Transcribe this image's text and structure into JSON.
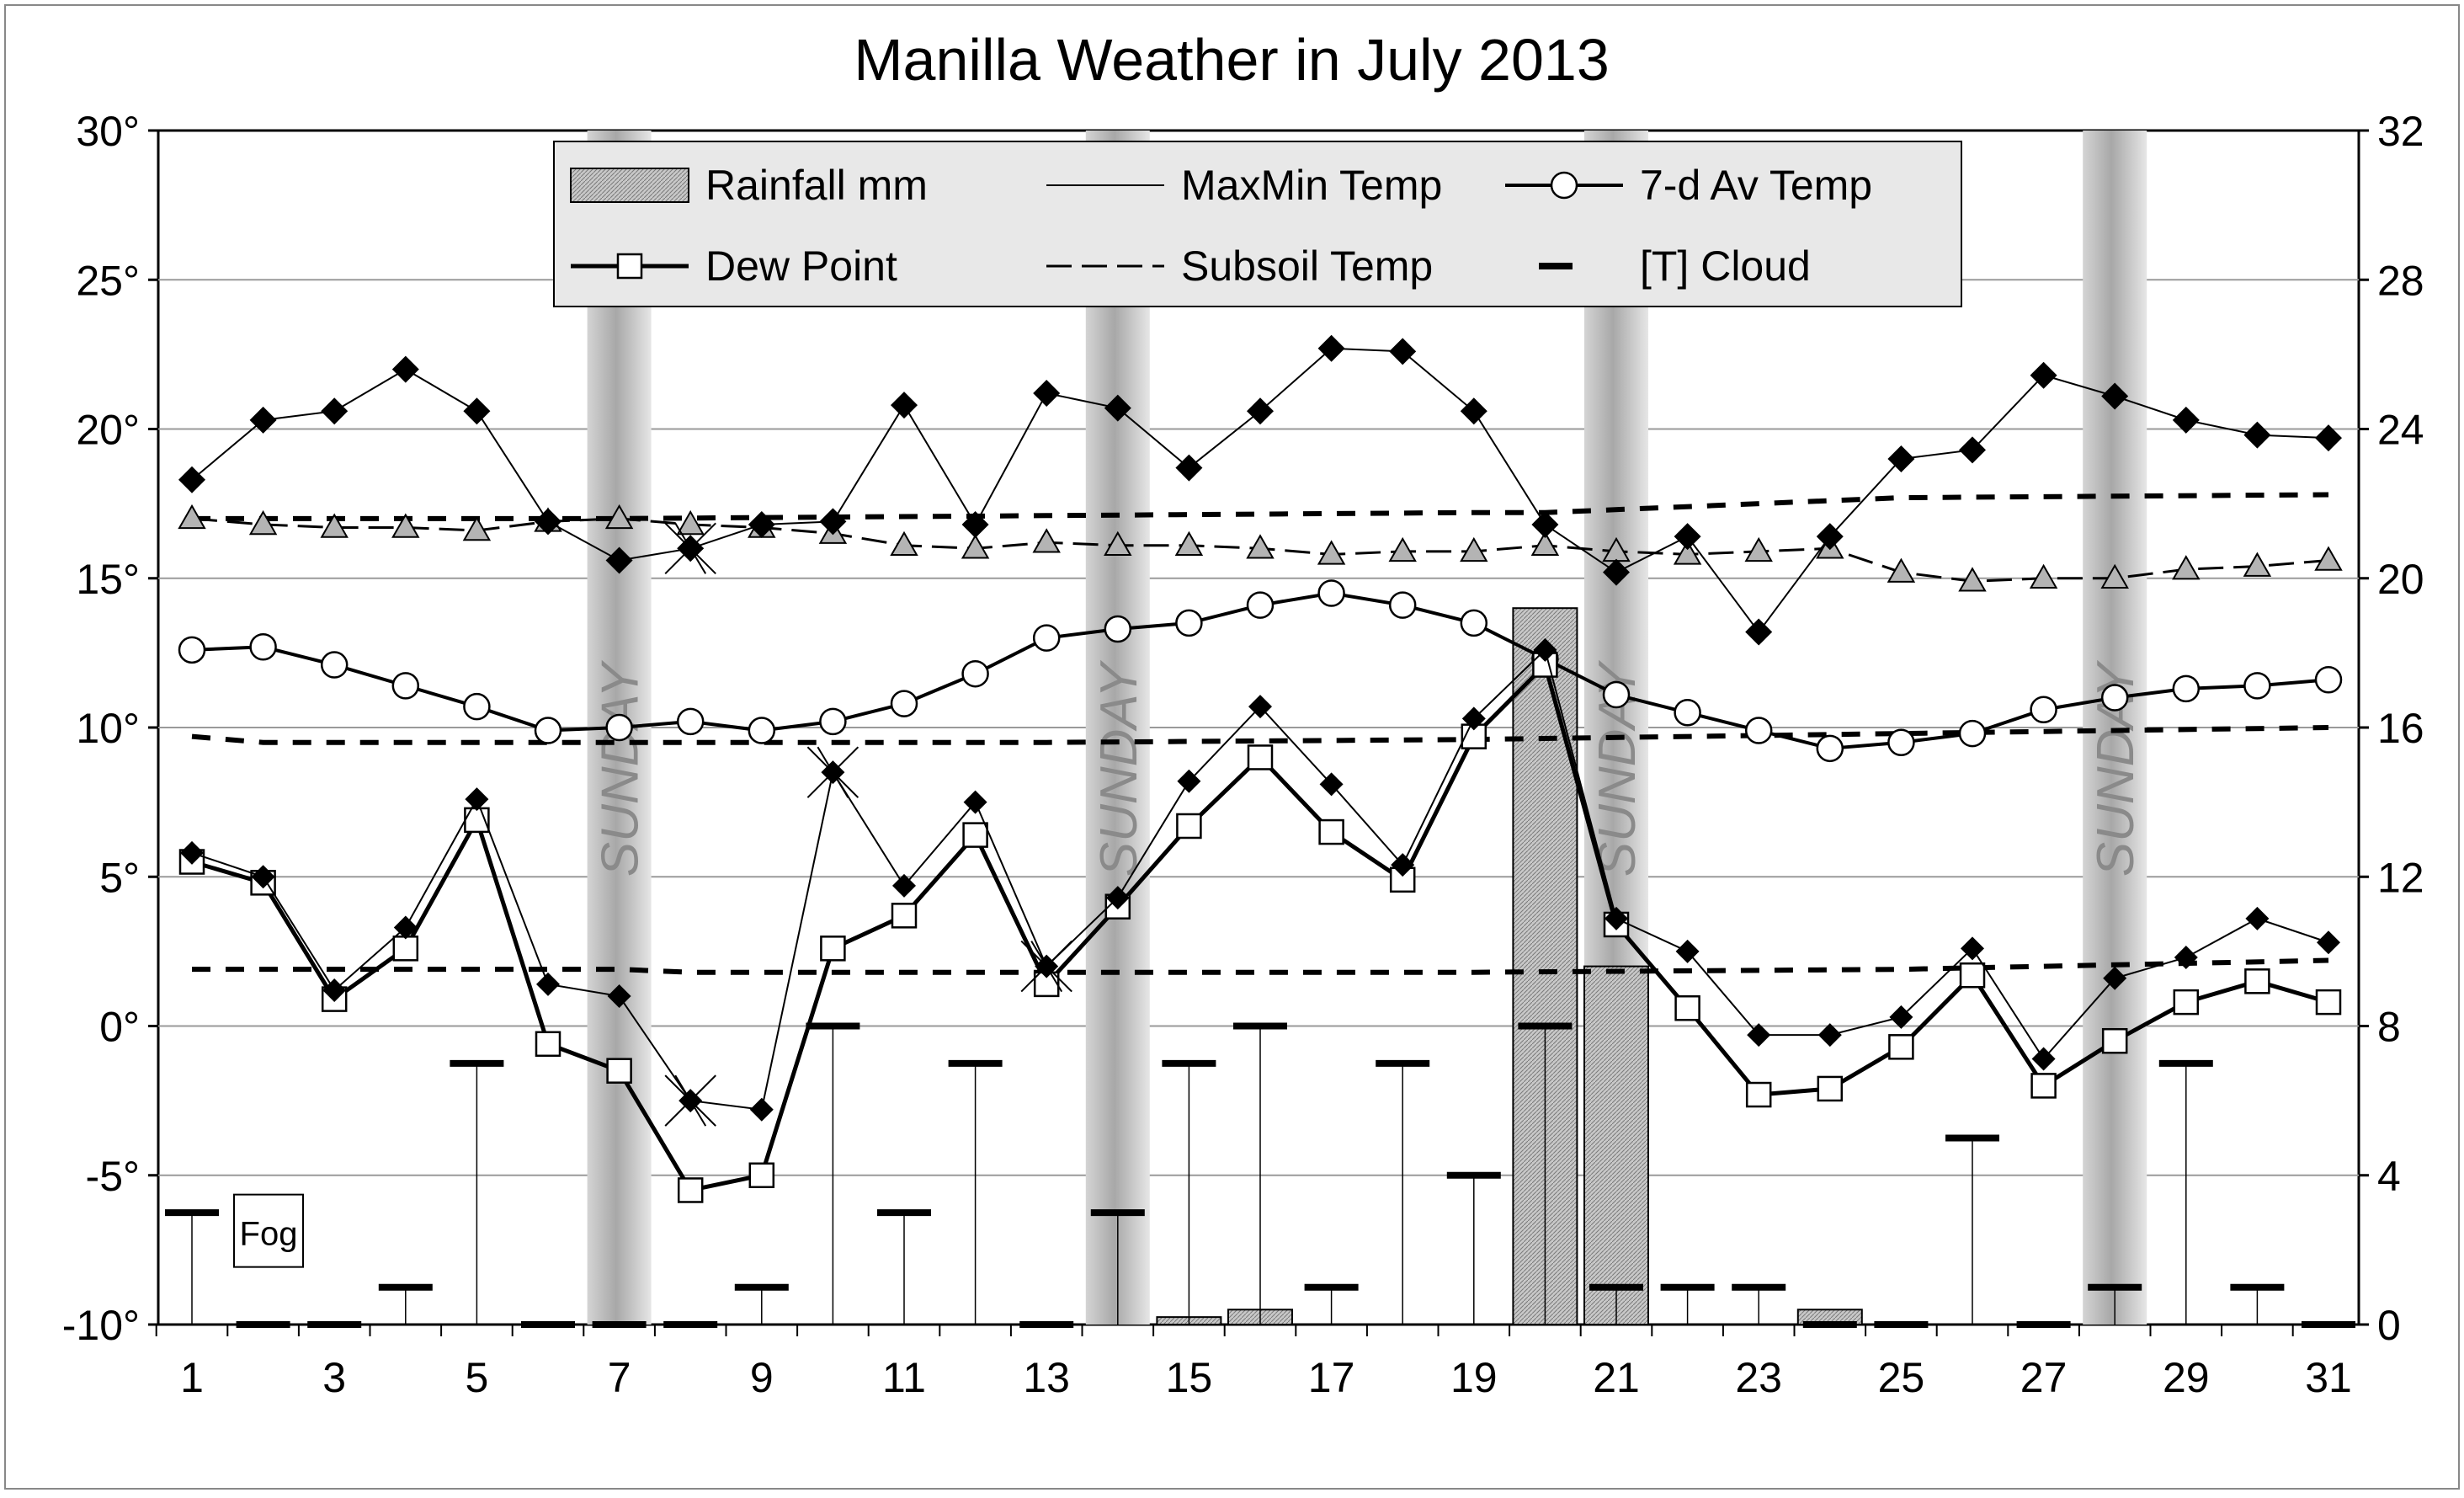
{
  "chart_data": {
    "type": "line",
    "title": "Manilla Weather in July 2013",
    "x": [
      1,
      2,
      3,
      4,
      5,
      6,
      7,
      8,
      9,
      10,
      11,
      12,
      13,
      14,
      15,
      16,
      17,
      18,
      19,
      20,
      21,
      22,
      23,
      24,
      25,
      26,
      27,
      28,
      29,
      30,
      31
    ],
    "x_tick_labels": [
      "1",
      "3",
      "5",
      "7",
      "9",
      "11",
      "13",
      "15",
      "17",
      "19",
      "21",
      "23",
      "25",
      "27",
      "29",
      "31"
    ],
    "y_left_tick_labels": [
      "30°",
      "25°",
      "20°",
      "15°",
      "10°",
      "5°",
      "0°",
      "-5°",
      "-10°"
    ],
    "y_right_tick_labels": [
      "32",
      "28",
      "24",
      "20",
      "16",
      "12",
      "8",
      "4",
      "0"
    ],
    "ylim_left": [
      -10,
      30
    ],
    "ylim_right": [
      0,
      32
    ],
    "legend_position": "top-center",
    "sunday_label": "SUNDAY",
    "sundays": [
      7,
      14,
      21,
      28
    ],
    "fog_label": "Fog",
    "fog_day": 1,
    "series": [
      {
        "name": "Rainfall mm",
        "axis": "right",
        "style": "bar",
        "values": [
          0,
          0,
          0,
          0,
          0,
          0,
          0,
          0,
          0,
          0,
          0,
          0,
          0,
          0,
          0.2,
          0.4,
          0,
          0,
          0,
          19.2,
          9.6,
          0,
          0,
          0.4,
          0,
          0,
          0,
          0,
          0,
          0,
          0
        ]
      },
      {
        "name": "MaxMin Temp",
        "axis": "left",
        "style": "diamond",
        "max": [
          18.3,
          20.3,
          20.6,
          22.0,
          20.6,
          16.9,
          15.6,
          16.0,
          16.8,
          16.9,
          20.8,
          16.8,
          21.2,
          20.7,
          18.7,
          20.6,
          22.7,
          22.6,
          20.6,
          16.8,
          15.2,
          16.4,
          13.2,
          16.4,
          19.0,
          19.3,
          21.8,
          21.1,
          20.3,
          19.8,
          19.7
        ],
        "min": [
          5.8,
          5.0,
          1.2,
          3.3,
          7.6,
          1.4,
          1.0,
          -2.5,
          -2.8,
          8.5,
          4.7,
          7.5,
          2.0,
          4.3,
          8.2,
          10.7,
          8.1,
          5.4,
          10.3,
          12.6,
          3.6,
          2.5,
          -0.3,
          -0.3,
          0.3,
          2.6,
          -1.1,
          1.6,
          2.3,
          3.6,
          2.8
        ]
      },
      {
        "name": "7-d Av Temp",
        "axis": "left",
        "style": "circle",
        "values": [
          12.6,
          12.7,
          12.1,
          11.4,
          10.7,
          9.9,
          10.0,
          10.2,
          9.9,
          10.2,
          10.8,
          11.8,
          13.0,
          13.3,
          13.5,
          14.1,
          14.5,
          14.1,
          13.5,
          12.3,
          11.1,
          10.5,
          9.9,
          9.3,
          9.5,
          9.8,
          10.6,
          11.0,
          11.3,
          11.4,
          11.6
        ]
      },
      {
        "name": "Dew Point",
        "axis": "left",
        "style": "square",
        "values": [
          5.5,
          4.8,
          0.9,
          2.6,
          6.9,
          -0.6,
          -1.5,
          -5.5,
          -5.0,
          2.6,
          3.7,
          6.4,
          1.4,
          4.0,
          6.7,
          9.0,
          6.5,
          4.9,
          9.7,
          12.1,
          3.4,
          0.6,
          -2.3,
          -2.1,
          -0.7,
          1.7,
          -2.0,
          -0.5,
          0.8,
          1.5,
          0.8
        ]
      },
      {
        "name": "Subsoil Temp",
        "axis": "left",
        "style": "triangle",
        "values": [
          17.0,
          16.8,
          16.7,
          16.7,
          16.6,
          16.9,
          17.0,
          16.8,
          16.7,
          16.5,
          16.1,
          16.0,
          16.2,
          16.1,
          16.1,
          16.0,
          15.8,
          15.9,
          15.9,
          16.1,
          15.9,
          15.8,
          15.9,
          16.0,
          15.2,
          14.9,
          15.0,
          15.0,
          15.3,
          15.4,
          15.6
        ]
      },
      {
        "name": "[T] Cloud",
        "axis": "right",
        "style": "dash",
        "values": [
          3,
          0,
          0,
          1,
          7,
          0,
          0,
          0,
          1,
          8,
          3,
          7,
          0,
          3,
          7,
          8,
          1,
          7,
          4,
          8,
          1,
          1,
          1,
          0,
          0,
          5,
          0,
          1,
          7,
          1,
          0
        ]
      }
    ],
    "reference_lines": [
      {
        "axis": "left",
        "days": [
          1,
          7,
          13,
          19,
          20,
          25,
          31
        ],
        "values": [
          17.0,
          17.0,
          17.1,
          17.2,
          17.2,
          17.7,
          17.8
        ]
      },
      {
        "axis": "left",
        "days": [
          1,
          2,
          7,
          13,
          19,
          25,
          31
        ],
        "values": [
          9.7,
          9.5,
          9.5,
          9.5,
          9.6,
          9.8,
          10.0
        ]
      },
      {
        "axis": "left",
        "days": [
          1,
          7,
          8,
          13,
          19,
          25,
          31
        ],
        "values": [
          1.9,
          1.9,
          1.8,
          1.8,
          1.8,
          1.9,
          2.2
        ]
      }
    ],
    "asterisk_days": [
      8,
      10,
      13
    ]
  }
}
